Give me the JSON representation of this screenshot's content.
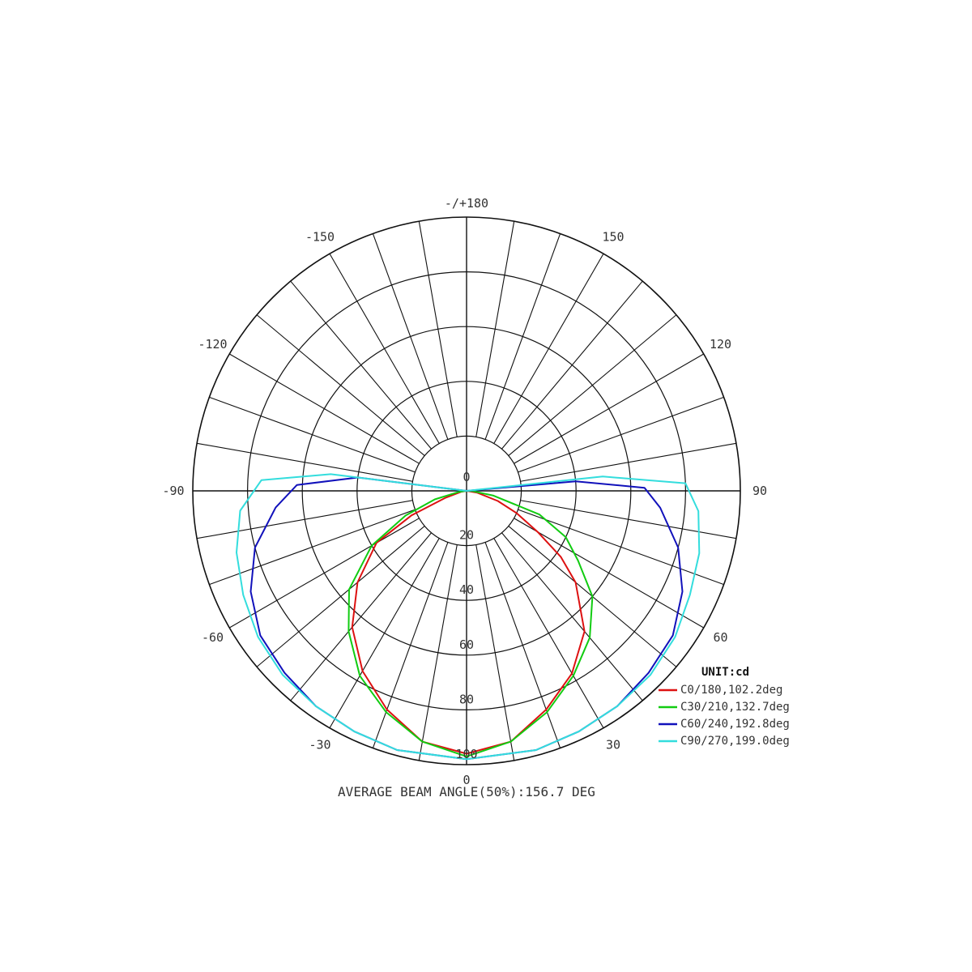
{
  "chart_data": {
    "type": "polar",
    "title": "",
    "unit_label": "UNIT:cd",
    "footer": "AVERAGE BEAM ANGLE(50%):156.7 DEG",
    "radial_ticks": [
      "0",
      "20",
      "40",
      "60",
      "80",
      "100"
    ],
    "radial_max": 100,
    "angle_labels": [
      {
        "angle": 180,
        "text": "-/+180"
      },
      {
        "angle": 150,
        "text": "150"
      },
      {
        "angle": -150,
        "text": "-150"
      },
      {
        "angle": 120,
        "text": "120"
      },
      {
        "angle": -120,
        "text": "-120"
      },
      {
        "angle": 90,
        "text": "90"
      },
      {
        "angle": -90,
        "text": "-90"
      },
      {
        "angle": 60,
        "text": "60"
      },
      {
        "angle": -60,
        "text": "-60"
      },
      {
        "angle": 30,
        "text": "30"
      },
      {
        "angle": -30,
        "text": "-30"
      },
      {
        "angle": 0,
        "text": "0"
      }
    ],
    "series": [
      {
        "name": "C0/180,102.2deg",
        "color": "#dd1111",
        "points": [
          [
            -90,
            0
          ],
          [
            -80,
            2
          ],
          [
            -72,
            8
          ],
          [
            -66,
            22
          ],
          [
            -60,
            38
          ],
          [
            -50,
            52
          ],
          [
            -40,
            65
          ],
          [
            -30,
            76
          ],
          [
            -20,
            85
          ],
          [
            -10,
            93
          ],
          [
            0,
            96
          ],
          [
            10,
            93
          ],
          [
            20,
            85
          ],
          [
            30,
            77
          ],
          [
            40,
            67
          ],
          [
            50,
            52
          ],
          [
            55,
            42
          ],
          [
            60,
            30
          ],
          [
            66,
            20
          ],
          [
            72,
            12
          ],
          [
            80,
            4
          ],
          [
            90,
            0
          ]
        ]
      },
      {
        "name": "C30/210,132.7deg",
        "color": "#11cc11",
        "points": [
          [
            -90,
            0
          ],
          [
            -82,
            3
          ],
          [
            -75,
            12
          ],
          [
            -68,
            24
          ],
          [
            -60,
            40
          ],
          [
            -50,
            56
          ],
          [
            -40,
            67
          ],
          [
            -30,
            78
          ],
          [
            -20,
            86
          ],
          [
            -10,
            93
          ],
          [
            0,
            97
          ],
          [
            10,
            93
          ],
          [
            20,
            86
          ],
          [
            30,
            78
          ],
          [
            40,
            70
          ],
          [
            50,
            60
          ],
          [
            58,
            48
          ],
          [
            65,
            40
          ],
          [
            72,
            28
          ],
          [
            80,
            10
          ],
          [
            88,
            2
          ],
          [
            90,
            0
          ]
        ]
      },
      {
        "name": "C60/240,192.8deg",
        "color": "#1111bb",
        "points": [
          [
            -100,
            0
          ],
          [
            -97,
            40
          ],
          [
            -92,
            62
          ],
          [
            -85,
            70
          ],
          [
            -75,
            80
          ],
          [
            -65,
            87
          ],
          [
            -55,
            92
          ],
          [
            -45,
            94
          ],
          [
            -35,
            96
          ],
          [
            -25,
            97
          ],
          [
            -15,
            98
          ],
          [
            0,
            98
          ],
          [
            15,
            98
          ],
          [
            25,
            97
          ],
          [
            35,
            96
          ],
          [
            45,
            94
          ],
          [
            55,
            92
          ],
          [
            65,
            87
          ],
          [
            75,
            80
          ],
          [
            85,
            71
          ],
          [
            91,
            65
          ],
          [
            95,
            40
          ],
          [
            100,
            0
          ]
        ]
      },
      {
        "name": "C90/270,199.0deg",
        "color": "#33dddd",
        "points": [
          [
            -100,
            0
          ],
          [
            -97,
            50
          ],
          [
            -93,
            75
          ],
          [
            -85,
            83
          ],
          [
            -75,
            87
          ],
          [
            -65,
            90
          ],
          [
            -55,
            93
          ],
          [
            -45,
            95
          ],
          [
            -35,
            96
          ],
          [
            -25,
            97
          ],
          [
            -15,
            98
          ],
          [
            0,
            98
          ],
          [
            15,
            98
          ],
          [
            25,
            97
          ],
          [
            35,
            96
          ],
          [
            45,
            95
          ],
          [
            55,
            93
          ],
          [
            65,
            90
          ],
          [
            75,
            88
          ],
          [
            85,
            85
          ],
          [
            92,
            80
          ],
          [
            96,
            50
          ],
          [
            100,
            0
          ]
        ]
      }
    ],
    "legend_position": "bottom-right",
    "grid": true
  }
}
